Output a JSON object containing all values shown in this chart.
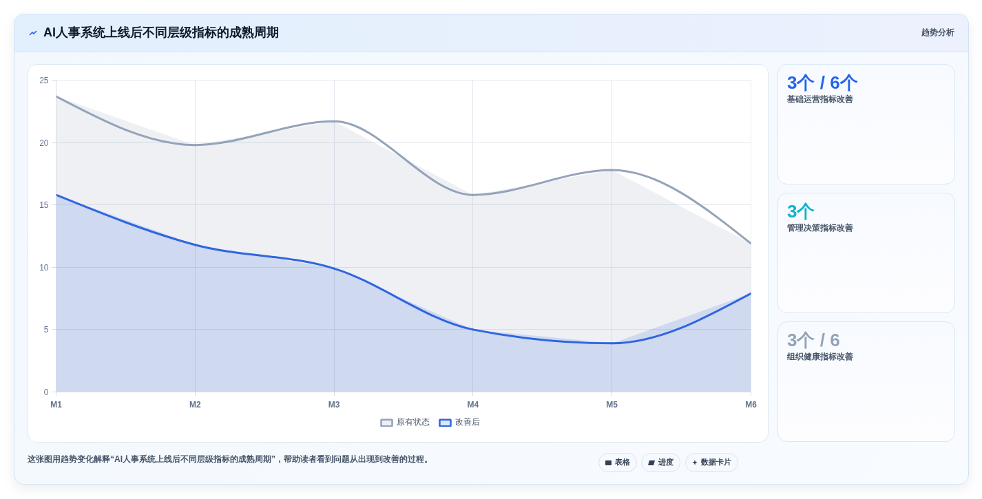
{
  "chart_data": {
    "type": "area",
    "title": "AI人事系统上线后不同层级指标的成熟周期",
    "categories": [
      "M1",
      "M2",
      "M3",
      "M4",
      "M5",
      "M6"
    ],
    "series": [
      {
        "name": "原有状态",
        "color": "#94a3b8",
        "values": [
          23.7,
          19.8,
          21.7,
          15.8,
          17.8,
          11.9
        ]
      },
      {
        "name": "改善后",
        "color": "#2f66e0",
        "values": [
          15.8,
          11.8,
          9.9,
          5.0,
          3.9,
          7.9
        ]
      }
    ],
    "ylim": [
      0,
      25
    ],
    "yticks": [
      0,
      5,
      10,
      15,
      20,
      25
    ],
    "grid": true,
    "legend": "bottom",
    "annotations": [
      "趋势分析",
      "3个 / 6个",
      "基础运营指标改善",
      "3个",
      "管理决策指标改善",
      "3个 / 6",
      "组织健康指标改善",
      "这张图用趋势变化解释“AI人事系统上线后不同层级指标的成熟周期”，帮助读者看到问题从出现到改善的过程。",
      "表格",
      "进度",
      "数据卡片"
    ]
  }
}
